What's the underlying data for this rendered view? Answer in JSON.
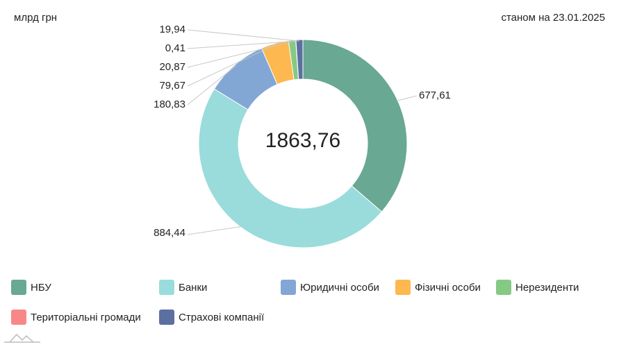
{
  "header": {
    "unit": "млрд грн",
    "as_of": "станом на 23.01.2025"
  },
  "chart_data": {
    "type": "pie",
    "donut": true,
    "total_label": "1863,76",
    "categories": [
      "НБУ",
      "Банки",
      "Юридичні особи",
      "Фізичні особи",
      "Нерезиденти",
      "Територіальні громади",
      "Страхові компанії"
    ],
    "values": [
      677.61,
      884.44,
      180.83,
      79.67,
      20.87,
      0.41,
      19.94
    ],
    "value_labels": [
      "677,61",
      "884,44",
      "180,83",
      "79,67",
      "20,87",
      "0,41",
      "19,94"
    ],
    "colors": [
      "#69a892",
      "#99dcdb",
      "#83a7d4",
      "#fdb84f",
      "#86c985",
      "#f88887",
      "#5b6fa0"
    ],
    "legend_position": "bottom"
  }
}
